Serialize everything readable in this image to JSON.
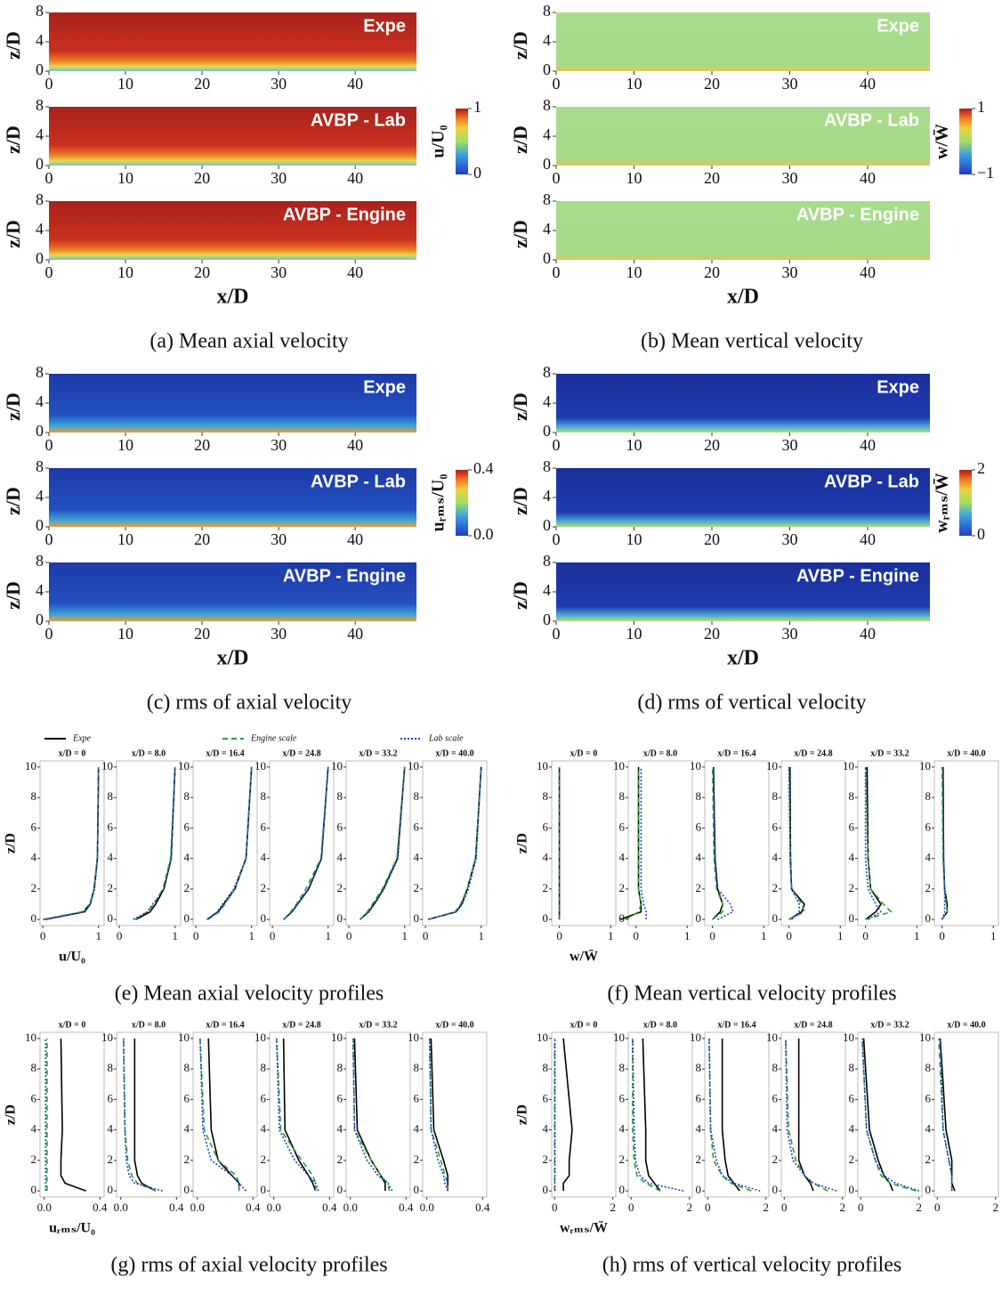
{
  "fields": [
    {
      "caption": "(a) Mean axial velocity",
      "rows": [
        "Expe",
        "AVBP - Lab",
        "AVBP - Engine"
      ],
      "xlabel": "x/D",
      "ylabel": "z/D",
      "xlim": [
        0,
        48
      ],
      "xticks": [
        0,
        10,
        20,
        30,
        40
      ],
      "ylim": [
        0,
        8
      ],
      "yticks": [
        0,
        4,
        8
      ],
      "colorbar_label": "u/U₀",
      "colorbar_lim": [
        0,
        1
      ],
      "colorbar_ticks": [
        0,
        1
      ]
    },
    {
      "caption": "(b) Mean vertical velocity",
      "rows": [
        "Expe",
        "AVBP - Lab",
        "AVBP - Engine"
      ],
      "xlabel": "x/D",
      "ylabel": "z/D",
      "xlim": [
        0,
        48
      ],
      "xticks": [
        0,
        10,
        20,
        30,
        40
      ],
      "ylim": [
        0,
        8
      ],
      "yticks": [
        0,
        4,
        8
      ],
      "colorbar_label": "w/W̄",
      "colorbar_lim": [
        -1,
        1
      ],
      "colorbar_ticks": [
        {
          "value": -1,
          "label": "−1"
        },
        1
      ]
    },
    {
      "caption": "(c) rms of axial velocity",
      "rows": [
        "Expe",
        "AVBP - Lab",
        "AVBP - Engine"
      ],
      "xlabel": "x/D",
      "ylabel": "z/D",
      "xlim": [
        0,
        48
      ],
      "xticks": [
        0,
        10,
        20,
        30,
        40
      ],
      "ylim": [
        0,
        8
      ],
      "yticks": [
        0,
        4,
        8
      ],
      "colorbar_label": "uᵣₘₛ/U₀",
      "colorbar_lim": [
        0,
        0.4
      ],
      "colorbar_ticks": [
        {
          "value": 0,
          "label": "0.0"
        },
        0.4
      ]
    },
    {
      "caption": "(d) rms of vertical velocity",
      "rows": [
        "Expe",
        "AVBP - Lab",
        "AVBP - Engine"
      ],
      "xlabel": "x/D",
      "ylabel": "z/D",
      "xlim": [
        0,
        48
      ],
      "xticks": [
        0,
        10,
        20,
        30,
        40
      ],
      "ylim": [
        0,
        8
      ],
      "yticks": [
        0,
        4,
        8
      ],
      "colorbar_label": "wᵣₘₛ/W̄",
      "colorbar_lim": [
        0,
        2
      ],
      "colorbar_ticks": [
        0,
        2
      ]
    }
  ],
  "legend": [
    {
      "name": "Expe",
      "color": "#000000",
      "dash": "none"
    },
    {
      "name": "Engine scale",
      "color": "#2ca02c",
      "dash": "6 4"
    },
    {
      "name": "Lab scale",
      "color": "#1f3fd0",
      "dash": "2 2"
    }
  ],
  "profiles": [
    {
      "caption": "(e) Mean axial velocity profiles",
      "xlabel": "u/U₀",
      "ylabel": "z/D",
      "xlim": [
        -0.05,
        1.1
      ],
      "xticks": [
        0,
        1
      ],
      "ylim": [
        -0.4,
        10.4
      ],
      "yticks": [
        0,
        2,
        4,
        6,
        8,
        10
      ],
      "z": [
        0,
        0.5,
        1,
        2,
        4,
        10
      ],
      "subplots": [
        {
          "title": "x/D = 0",
          "series": [
            [
              0.05,
              0.75,
              0.85,
              0.92,
              0.98,
              1.0
            ],
            [
              0.0,
              0.7,
              0.84,
              0.92,
              0.98,
              1.0
            ],
            [
              0.02,
              0.72,
              0.85,
              0.93,
              0.98,
              1.0
            ]
          ]
        },
        {
          "title": "x/D = 8.0",
          "series": [
            [
              0.3,
              0.55,
              0.65,
              0.8,
              0.93,
              1.0
            ],
            [
              0.28,
              0.5,
              0.62,
              0.78,
              0.92,
              1.0
            ],
            [
              0.25,
              0.5,
              0.6,
              0.8,
              0.93,
              1.0
            ]
          ]
        },
        {
          "title": "x/D = 16.4",
          "series": [
            [
              0.2,
              0.4,
              0.5,
              0.7,
              0.9,
              1.0
            ],
            [
              0.22,
              0.42,
              0.52,
              0.7,
              0.9,
              1.0
            ],
            [
              0.2,
              0.38,
              0.48,
              0.68,
              0.9,
              1.0
            ]
          ]
        },
        {
          "title": "x/D = 24.8",
          "series": [
            [
              0.2,
              0.35,
              0.45,
              0.65,
              0.88,
              1.0
            ],
            [
              0.2,
              0.33,
              0.43,
              0.6,
              0.87,
              1.0
            ],
            [
              0.2,
              0.35,
              0.45,
              0.64,
              0.88,
              1.0
            ]
          ]
        },
        {
          "title": "x/D = 33.2",
          "series": [
            [
              0.2,
              0.35,
              0.45,
              0.62,
              0.87,
              1.0
            ],
            [
              0.2,
              0.33,
              0.42,
              0.6,
              0.86,
              1.0
            ],
            [
              0.2,
              0.36,
              0.46,
              0.63,
              0.88,
              1.0
            ]
          ]
        },
        {
          "title": "x/D = 40.0",
          "series": [
            [
              0.05,
              0.55,
              0.65,
              0.75,
              0.9,
              1.0
            ],
            [
              0.05,
              0.53,
              0.63,
              0.75,
              0.9,
              1.0
            ],
            [
              0.05,
              0.55,
              0.66,
              0.77,
              0.91,
              1.0
            ]
          ]
        }
      ]
    },
    {
      "caption": "(f) Mean vertical velocity profiles",
      "xlabel": "w/W̄",
      "ylabel": "z/D",
      "xlim": [
        -0.15,
        1.1
      ],
      "xticks": [
        0,
        1
      ],
      "ylim": [
        -0.4,
        10.4
      ],
      "yticks": [
        0,
        2,
        4,
        6,
        8,
        10
      ],
      "z": [
        0,
        0.5,
        1,
        2,
        4,
        10
      ],
      "subplots": [
        {
          "title": "x/D = 0",
          "series": [
            [
              0,
              0,
              0,
              0,
              0,
              0
            ],
            [
              0,
              0,
              0,
              0,
              0,
              0
            ],
            [
              0,
              0,
              0,
              0,
              0,
              0
            ]
          ]
        },
        {
          "title": "x/D = 8.0",
          "series": [
            [
              -0.3,
              0.1,
              0.1,
              0.05,
              0.05,
              0.05
            ],
            [
              -0.2,
              0.05,
              0.1,
              0.05,
              0.05,
              0.05
            ],
            [
              0.2,
              0.2,
              0.15,
              0.1,
              0.1,
              0.1
            ]
          ]
        },
        {
          "title": "x/D = 16.4",
          "series": [
            [
              0,
              0.15,
              0.2,
              0.1,
              0.05,
              0.02
            ],
            [
              0,
              0.2,
              0.2,
              0.08,
              0.03,
              0
            ],
            [
              0.1,
              0.4,
              0.35,
              0.1,
              0.05,
              0.02
            ]
          ]
        },
        {
          "title": "x/D = 24.8",
          "series": [
            [
              0,
              0.25,
              0.3,
              0.05,
              0.03,
              0.02
            ],
            [
              0,
              0.3,
              0.25,
              0.05,
              0.03,
              0
            ],
            [
              0.05,
              0.2,
              0.2,
              0.05,
              0.02,
              0
            ]
          ]
        },
        {
          "title": "x/D = 33.2",
          "series": [
            [
              0,
              0.2,
              0.3,
              0.1,
              0.05,
              0.03
            ],
            [
              0,
              0.5,
              0.35,
              0.1,
              0.05,
              0
            ],
            [
              0.05,
              0.3,
              0.2,
              0.05,
              0,
              0
            ]
          ]
        },
        {
          "title": "x/D = 40.0",
          "series": [
            [
              0,
              0.1,
              0.1,
              0.05,
              0.03,
              0.02
            ],
            [
              0,
              0.1,
              0.08,
              0.05,
              0.02,
              0
            ],
            [
              0,
              0.05,
              0.05,
              0.05,
              0.03,
              0.02
            ]
          ]
        }
      ]
    },
    {
      "caption": "(g) rms of axial velocity profiles",
      "xlabel": "uᵣₘₛ/U₀",
      "ylabel": "z/D",
      "xlim": [
        -0.03,
        0.43
      ],
      "xticks": [
        {
          "value": 0,
          "label": "0.0"
        },
        0.4
      ],
      "ylim": [
        -0.4,
        10.4
      ],
      "yticks": [
        0,
        2,
        4,
        6,
        8,
        10
      ],
      "z": [
        0,
        0.5,
        1,
        2,
        4,
        10
      ],
      "subplots": [
        {
          "title": "x/D = 0",
          "series": [
            [
              0.3,
              0.15,
              0.12,
              0.12,
              0.13,
              0.12
            ],
            [
              0.02,
              0.02,
              0.02,
              0.02,
              0.02,
              0.02
            ],
            [
              0.01,
              0.01,
              0.01,
              0.01,
              0.01,
              0.01
            ]
          ]
        },
        {
          "title": "x/D = 8.0",
          "series": [
            [
              0.25,
              0.15,
              0.12,
              0.1,
              0.1,
              0.1
            ],
            [
              0.25,
              0.12,
              0.08,
              0.05,
              0.03,
              0.02
            ],
            [
              0.3,
              0.1,
              0.06,
              0.04,
              0.03,
              0.02
            ]
          ]
        },
        {
          "title": "x/D = 16.4",
          "series": [
            [
              0.3,
              0.3,
              0.25,
              0.15,
              0.1,
              0.08
            ],
            [
              0.3,
              0.3,
              0.28,
              0.15,
              0.05,
              0.02
            ],
            [
              0.35,
              0.3,
              0.25,
              0.1,
              0.04,
              0.02
            ]
          ]
        },
        {
          "title": "x/D = 24.8",
          "series": [
            [
              0.3,
              0.28,
              0.25,
              0.18,
              0.08,
              0.07
            ],
            [
              0.3,
              0.3,
              0.28,
              0.2,
              0.05,
              0.02
            ],
            [
              0.32,
              0.3,
              0.25,
              0.15,
              0.04,
              0.02
            ]
          ]
        },
        {
          "title": "x/D = 33.2",
          "series": [
            [
              0.25,
              0.25,
              0.22,
              0.15,
              0.05,
              0.03
            ],
            [
              0.28,
              0.27,
              0.22,
              0.15,
              0.03,
              0.02
            ],
            [
              0.3,
              0.27,
              0.2,
              0.12,
              0.03,
              0.02
            ]
          ]
        },
        {
          "title": "x/D = 40.0",
          "series": [
            [
              0.15,
              0.15,
              0.15,
              0.12,
              0.05,
              0.03
            ],
            [
              0.15,
              0.15,
              0.13,
              0.1,
              0.03,
              0.02
            ],
            [
              0.15,
              0.13,
              0.12,
              0.08,
              0.03,
              0.02
            ]
          ]
        }
      ]
    },
    {
      "caption": "(h) rms of vertical velocity profiles",
      "xlabel": "wᵣₘₛ/W̄",
      "ylabel": "z/D",
      "xlim": [
        -0.1,
        2.1
      ],
      "xticks": [
        0,
        2
      ],
      "ylim": [
        -0.4,
        10.4
      ],
      "yticks": [
        0,
        2,
        4,
        6,
        8,
        10
      ],
      "z": [
        0,
        0.5,
        1,
        2,
        4,
        10
      ],
      "subplots": [
        {
          "title": "x/D = 0",
          "series": [
            [
              0.3,
              0.3,
              0.5,
              0.5,
              0.6,
              0.3
            ],
            [
              0,
              0,
              0,
              0,
              0,
              0
            ],
            [
              0.01,
              0.01,
              0.01,
              0.01,
              0.01,
              0.01
            ]
          ]
        },
        {
          "title": "x/D = 8.0",
          "series": [
            [
              1.0,
              0.8,
              0.6,
              0.5,
              0.5,
              0.4
            ],
            [
              1.0,
              0.5,
              0.2,
              0.1,
              0.05,
              0.05
            ],
            [
              1.8,
              0.6,
              0.3,
              0.15,
              0.1,
              0.05
            ]
          ]
        },
        {
          "title": "x/D = 16.4",
          "series": [
            [
              1.1,
              0.9,
              0.7,
              0.6,
              0.5,
              0.5
            ],
            [
              1.5,
              0.8,
              0.5,
              0.2,
              0.1,
              0.05
            ],
            [
              1.8,
              0.9,
              0.5,
              0.3,
              0.1,
              0.05
            ]
          ]
        },
        {
          "title": "x/D = 24.8",
          "series": [
            [
              1.0,
              0.9,
              0.7,
              0.5,
              0.5,
              0.5
            ],
            [
              1.5,
              1.0,
              0.7,
              0.4,
              0.15,
              0.05
            ],
            [
              1.8,
              1.0,
              0.7,
              0.3,
              0.1,
              0.05
            ]
          ]
        },
        {
          "title": "x/D = 33.2",
          "series": [
            [
              1.1,
              1.0,
              0.8,
              0.6,
              0.3,
              0.1
            ],
            [
              1.9,
              1.0,
              0.7,
              0.5,
              0.2,
              0.05
            ],
            [
              2.0,
              1.2,
              0.8,
              0.5,
              0.2,
              0.05
            ]
          ]
        },
        {
          "title": "x/D = 40.0",
          "series": [
            [
              0.6,
              0.5,
              0.5,
              0.5,
              0.3,
              0.1
            ],
            [
              0.5,
              0.5,
              0.5,
              0.4,
              0.2,
              0.05
            ],
            [
              0.5,
              0.5,
              0.5,
              0.4,
              0.2,
              0.1
            ]
          ]
        }
      ]
    }
  ]
}
